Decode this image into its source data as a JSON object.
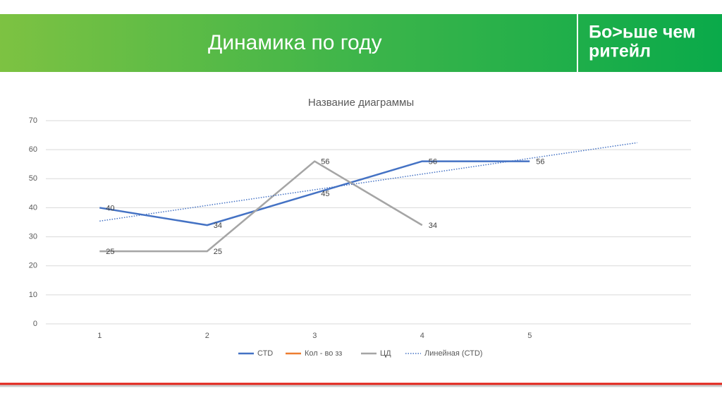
{
  "header": {
    "title": "Динамика по году",
    "logo": [
      "Бо>ьше чем",
      "ритейл"
    ]
  },
  "chart_data": {
    "type": "line",
    "title": "Название диаграммы",
    "categories": [
      1,
      2,
      3,
      4,
      5,
      null
    ],
    "series": [
      {
        "name": "СТD",
        "color": "#4472c4",
        "values": [
          40,
          34,
          45,
          56,
          56,
          null
        ],
        "data_labels": true
      },
      {
        "name": "Кол - во зз",
        "color": "#ed7d31",
        "values": [
          null,
          null,
          null,
          null,
          null,
          null
        ]
      },
      {
        "name": "ЦД",
        "color": "#a5a5a5",
        "values": [
          25,
          25,
          56,
          34,
          null,
          null
        ],
        "data_labels": true
      },
      {
        "name": "Линейная (СТD)",
        "color": "#4472c4",
        "dash": "dotted",
        "values": [
          35.4,
          40.8,
          46.2,
          51.6,
          57,
          62.4
        ]
      }
    ],
    "ylim": [
      0,
      70
    ],
    "yticks": [
      0,
      10,
      20,
      30,
      40,
      50,
      60,
      70
    ],
    "grid": true,
    "legend": "bottom"
  }
}
